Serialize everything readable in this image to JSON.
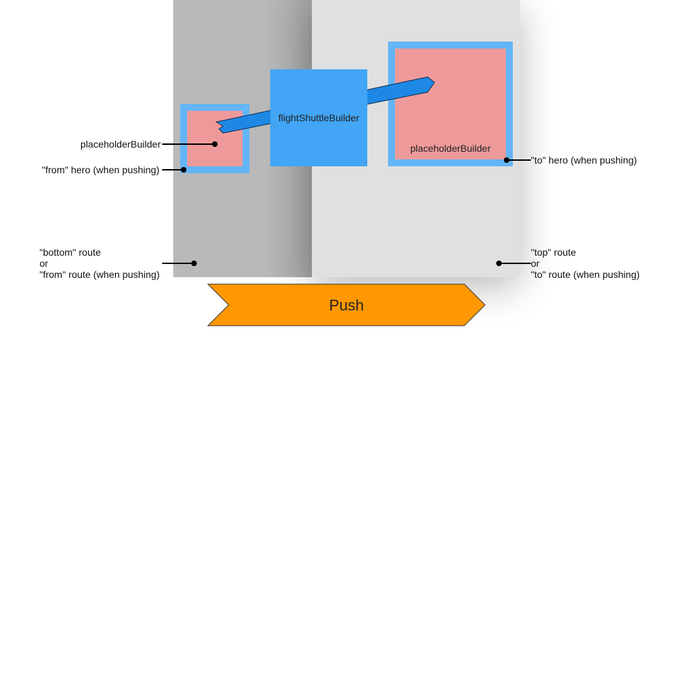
{
  "labels": {
    "flight_shuttle_builder": "flightShuttleBuilder",
    "placeholder_left": "placeholderBuilder",
    "placeholder_right": "placeholderBuilder",
    "from_hero": "\"from\" hero (when pushing)",
    "to_hero": "\"to\" hero (when pushing)",
    "bottom_route": [
      "\"bottom\" route",
      "or",
      "\"from\" route (when pushing)"
    ],
    "top_route": [
      "\"top\" route",
      "or",
      "\"to\" route (when pushing)"
    ],
    "push": "Push"
  },
  "colors": {
    "bottom_route_bg": "#b9b9b9",
    "top_route_bg": "#e0e0e0",
    "hero_border": "#64b5f6",
    "hero_fill": "#ef9a9a",
    "shuttle": "#42a5f5",
    "arrow": "#1e88e5",
    "push_banner": "#ff9800"
  }
}
